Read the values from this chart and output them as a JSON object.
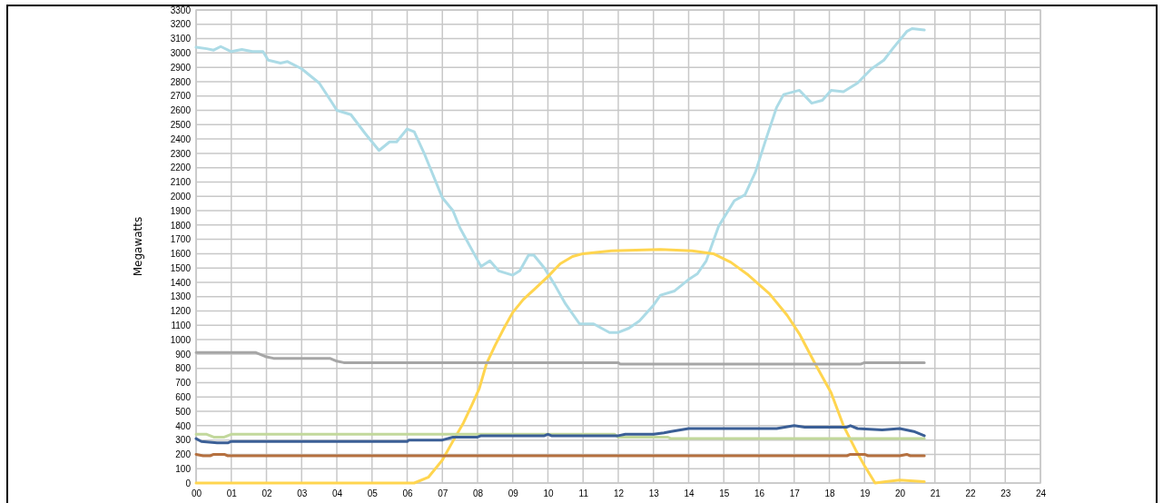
{
  "chart_data": {
    "type": "line",
    "ylabel": "Megawatts",
    "grid": true,
    "xlim": [
      0,
      24
    ],
    "xticks": [
      {
        "value": 0,
        "label": "00"
      },
      {
        "value": 1,
        "label": "01"
      },
      {
        "value": 2,
        "label": "02"
      },
      {
        "value": 3,
        "label": "03"
      },
      {
        "value": 4,
        "label": "04"
      },
      {
        "value": 5,
        "label": "05"
      },
      {
        "value": 6,
        "label": "06"
      },
      {
        "value": 7,
        "label": "07"
      },
      {
        "value": 8,
        "label": "08"
      },
      {
        "value": 9,
        "label": "09"
      },
      10,
      11,
      12,
      13,
      14,
      15,
      16,
      17,
      18,
      19,
      20,
      21,
      22,
      23,
      24
    ],
    "ylim": [
      0,
      3300
    ],
    "yticks": [
      0,
      100,
      200,
      300,
      400,
      500,
      600,
      700,
      800,
      900,
      1000,
      1100,
      1200,
      1300,
      1400,
      1500,
      1600,
      1700,
      1800,
      1900,
      2000,
      2100,
      2200,
      2300,
      2400,
      2500,
      2600,
      2700,
      2800,
      2900,
      3000,
      3100,
      3200,
      3300
    ],
    "series": [
      {
        "color": "#acdbe6",
        "x": [
          0,
          0.3,
          0.5,
          0.7,
          1.0,
          1.3,
          1.6,
          1.9,
          2.05,
          2.4,
          2.6,
          3.0,
          3.5,
          3.9,
          4.0,
          4.4,
          4.8,
          5.2,
          5.5,
          5.7,
          6.0,
          6.2,
          6.5,
          7.0,
          7.3,
          7.5,
          7.9,
          8.1,
          8.35,
          8.6,
          9.0,
          9.2,
          9.45,
          9.6,
          9.9,
          10.2,
          10.5,
          10.9,
          11.3,
          11.75,
          12.0,
          12.3,
          12.6,
          13.0,
          13.2,
          13.6,
          14.0,
          14.25,
          14.5,
          14.85,
          15.3,
          15.6,
          15.9,
          16.2,
          16.5,
          16.7,
          17.15,
          17.5,
          17.8,
          18.05,
          18.4,
          18.8,
          19.2,
          19.55,
          19.8,
          20.2,
          20.35,
          20.7
        ],
        "values": [
          3040,
          3030,
          3020,
          3045,
          3010,
          3025,
          3010,
          3010,
          2950,
          2930,
          2940,
          2890,
          2790,
          2640,
          2600,
          2570,
          2440,
          2320,
          2380,
          2380,
          2470,
          2450,
          2290,
          1990,
          1900,
          1780,
          1600,
          1510,
          1550,
          1480,
          1450,
          1480,
          1590,
          1590,
          1500,
          1380,
          1250,
          1110,
          1110,
          1050,
          1050,
          1080,
          1130,
          1240,
          1310,
          1340,
          1420,
          1460,
          1550,
          1790,
          1970,
          2010,
          2170,
          2400,
          2620,
          2710,
          2740,
          2650,
          2670,
          2740,
          2730,
          2790,
          2890,
          2950,
          3030,
          3150,
          3170,
          3160
        ]
      },
      {
        "color": "#ffd54f",
        "x": [
          0,
          6.2,
          6.6,
          7.0,
          7.25,
          7.6,
          7.85,
          8.05,
          8.25,
          8.5,
          8.75,
          9.0,
          9.3,
          9.65,
          10.0,
          10.35,
          10.7,
          11.0,
          11.8,
          13.2,
          14.1,
          14.7,
          15.2,
          15.7,
          16.3,
          16.8,
          17.15,
          17.6,
          18.05,
          18.4,
          18.75,
          19.0,
          19.3,
          19.6,
          20.0,
          20.7
        ],
        "values": [
          0,
          0,
          40,
          160,
          270,
          420,
          550,
          660,
          830,
          960,
          1080,
          1190,
          1280,
          1360,
          1440,
          1530,
          1580,
          1600,
          1620,
          1630,
          1620,
          1600,
          1540,
          1450,
          1320,
          1170,
          1040,
          830,
          630,
          400,
          230,
          120,
          0,
          10,
          20,
          10
        ]
      },
      {
        "color": "#a6a6a6",
        "x": [
          0,
          1.7,
          2.0,
          2.2,
          3.8,
          4.0,
          4.2,
          12.0,
          12.05,
          18.9,
          19.0,
          20.7
        ],
        "values": [
          910,
          910,
          880,
          870,
          870,
          850,
          840,
          840,
          830,
          830,
          840,
          840
        ]
      },
      {
        "color": "#c2d89c",
        "x": [
          0,
          0.3,
          0.5,
          0.8,
          1.0,
          11.9,
          12.0,
          13.4,
          13.5,
          20.7
        ],
        "values": [
          340,
          340,
          320,
          320,
          340,
          340,
          320,
          320,
          310,
          310
        ]
      },
      {
        "color": "#3b5f96",
        "x": [
          0,
          0.15,
          0.6,
          0.9,
          1.0,
          6.0,
          6.05,
          7.0,
          7.3,
          8.0,
          8.1,
          9.9,
          10.0,
          10.1,
          12.0,
          12.2,
          13.0,
          13.3,
          13.5,
          14.0,
          16.5,
          17.0,
          17.3,
          18.5,
          18.6,
          18.8,
          19.5,
          20.0,
          20.4,
          20.7
        ],
        "values": [
          310,
          290,
          280,
          280,
          290,
          290,
          300,
          300,
          320,
          320,
          330,
          330,
          340,
          330,
          330,
          340,
          340,
          350,
          360,
          380,
          380,
          400,
          390,
          390,
          400,
          380,
          370,
          380,
          360,
          330
        ]
      },
      {
        "color": "#b5703f",
        "x": [
          0,
          0.2,
          0.4,
          0.5,
          0.8,
          0.9,
          18.5,
          18.6,
          19.0,
          19.1,
          20.0,
          20.2,
          20.3,
          20.7
        ],
        "values": [
          200,
          190,
          190,
          200,
          200,
          190,
          190,
          200,
          200,
          190,
          190,
          200,
          190,
          190
        ]
      }
    ]
  }
}
